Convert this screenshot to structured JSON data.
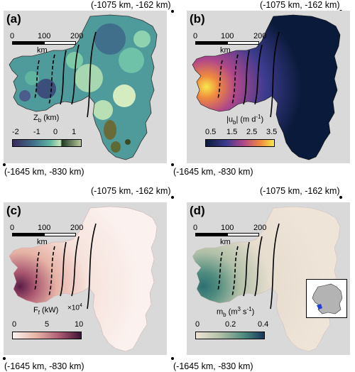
{
  "corners": {
    "top_right": "(-1075 km, -162 km)",
    "bottom_left": "(-1645 km, -830 km)"
  },
  "scalebar": {
    "ticks": [
      "0",
      "100",
      "200"
    ],
    "unit": "km"
  },
  "panels": [
    {
      "label": "(a)",
      "cbar_title": "Z",
      "cbar_sub": "b",
      "cbar_unit": " (km)",
      "cbar_ticks": [
        "-2",
        "-1",
        "0",
        "1"
      ]
    },
    {
      "label": "(b)",
      "cbar_title": "|u",
      "cbar_sub": "b",
      "cbar_unit": "| (m d",
      "cbar_sup": "-1",
      "cbar_end": ")",
      "cbar_ticks": [
        "0.5",
        "1.5",
        "2.5",
        "3.5"
      ]
    },
    {
      "label": "(c)",
      "cbar_title": "F",
      "cbar_sub": "f",
      "cbar_unit": " (kW)",
      "cbar_mult": "×10",
      "cbar_mult_sup": "4",
      "cbar_ticks": [
        "0",
        "5",
        "10"
      ]
    },
    {
      "label": "(d)",
      "cbar_title": "m",
      "cbar_sub": "b",
      "cbar_unit": " (m",
      "cbar_sup": "3",
      "cbar_mid": " s",
      "cbar_sup2": "-1",
      "cbar_end": ")",
      "cbar_ticks": [
        "0",
        "0.2",
        "0.4"
      ]
    }
  ],
  "colors": {
    "panel_bg": "#d9d9d9",
    "bed": [
      "#3b2a5c",
      "#3f6f8a",
      "#5fb5a0",
      "#c9e6b8",
      "#1e3a24",
      "#b8c79a"
    ],
    "speed": [
      "#0a1a3a",
      "#3d3c8f",
      "#b0478a",
      "#f08a3e",
      "#f7e94c"
    ],
    "flux": [
      "#fbf2ef",
      "#e6b3a6",
      "#a8566f",
      "#3d1433"
    ],
    "melt": [
      "#efe4d8",
      "#b2c0a8",
      "#4f8c7e",
      "#14375c"
    ]
  }
}
